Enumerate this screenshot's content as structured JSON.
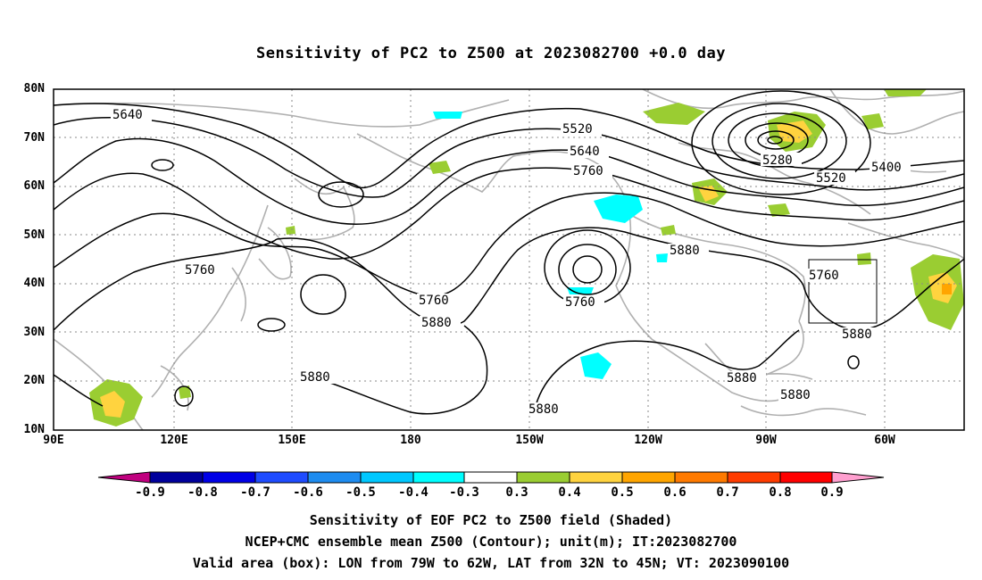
{
  "title": "Sensitivity of PC2 to Z500 at 2023082700 +0.0 day",
  "lat_labels": [
    "80N",
    "70N",
    "60N",
    "50N",
    "40N",
    "30N",
    "20N",
    "10N"
  ],
  "lon_labels": [
    "90E",
    "120E",
    "150E",
    "180",
    "150W",
    "120W",
    "90W",
    "60W"
  ],
  "contour_labels": [
    "5640",
    "5520",
    "5640",
    "5760",
    "5280",
    "5400",
    "5520",
    "5760",
    "5880",
    "5760",
    "5760",
    "5880",
    "5880",
    "5880",
    "5880",
    "5880",
    "5760",
    "5880"
  ],
  "colorbar": {
    "labels": [
      "-0.9",
      "-0.8",
      "-0.7",
      "-0.6",
      "-0.5",
      "-0.4",
      "-0.3",
      "0.3",
      "0.4",
      "0.5",
      "0.6",
      "0.7",
      "0.8",
      "0.9"
    ],
    "colors": [
      "#c0007f",
      "#00009c",
      "#0000e6",
      "#1f4cff",
      "#1e8cf0",
      "#00c8ff",
      "#00ffff",
      "#ffffff",
      "#9acd32",
      "#ffd33f",
      "#ffa500",
      "#ff7a00",
      "#ff3c00",
      "#ff0000",
      "#ff9fcf"
    ]
  },
  "captions": {
    "line1": "Sensitivity of EOF PC2 to Z500 field (Shaded)",
    "line2": "NCEP+CMC ensemble mean Z500 (Contour); unit(m); IT:2023082700",
    "line3": "Valid area (box): LON from 79W to 62W, LAT from 32N to 45N; VT: 2023090100"
  }
}
